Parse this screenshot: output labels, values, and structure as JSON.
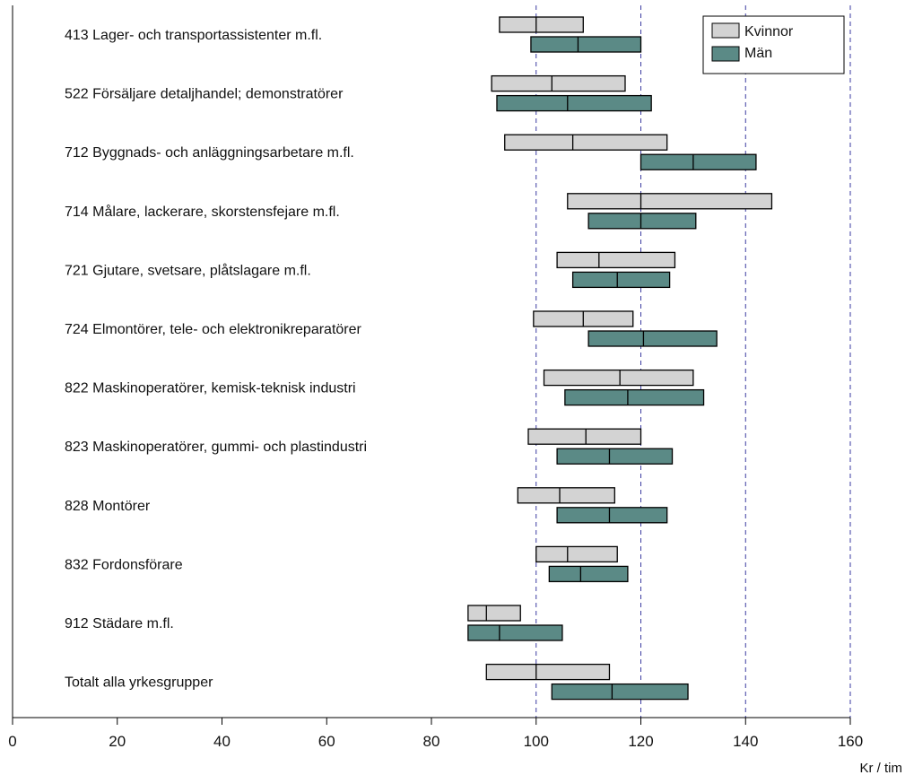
{
  "chart_data": {
    "type": "bar",
    "subtype": "floating-range-with-median",
    "xlabel": "Kr / tim",
    "xlim": [
      0,
      160
    ],
    "xticks": [
      0,
      20,
      40,
      60,
      80,
      100,
      120,
      140,
      160
    ],
    "gridlines": [
      100,
      120,
      140,
      160
    ],
    "grid": true,
    "legend_position": "top-right",
    "series": [
      {
        "name": "Kvinnor",
        "color": "#d3d3d3"
      },
      {
        "name": "Män",
        "color": "#5b8a86"
      }
    ],
    "categories": [
      {
        "label": "413 Lager- och transportassistenter m.fl.",
        "kvinnor": [
          93,
          100,
          109
        ],
        "man": [
          99,
          108,
          120
        ]
      },
      {
        "label": "522 Försäljare detaljhandel; demonstratörer",
        "kvinnor": [
          91.5,
          103,
          117
        ],
        "man": [
          92.5,
          106,
          122
        ]
      },
      {
        "label": "712 Byggnads- och anläggningsarbetare m.fl.",
        "kvinnor": [
          94,
          107,
          125
        ],
        "man": [
          120,
          130,
          142
        ]
      },
      {
        "label": "714 Målare, lackerare, skorstensfejare m.fl.",
        "kvinnor": [
          106,
          120,
          145
        ],
        "man": [
          110,
          120,
          130.5
        ]
      },
      {
        "label": "721 Gjutare, svetsare, plåtslagare m.fl.",
        "kvinnor": [
          104,
          112,
          126.5
        ],
        "man": [
          107,
          115.5,
          125.5
        ]
      },
      {
        "label": "724 Elmontörer, tele- och elektronikreparatörer",
        "kvinnor": [
          99.5,
          109,
          118.5
        ],
        "man": [
          110,
          120.5,
          134.5
        ]
      },
      {
        "label": "822 Maskinoperatörer, kemisk-teknisk industri",
        "kvinnor": [
          101.5,
          116,
          130
        ],
        "man": [
          105.5,
          117.5,
          132
        ]
      },
      {
        "label": "823 Maskinoperatörer, gummi- och plastindustri",
        "kvinnor": [
          98.5,
          109.5,
          120
        ],
        "man": [
          104,
          114,
          126
        ]
      },
      {
        "label": "828 Montörer",
        "kvinnor": [
          96.5,
          104.5,
          115
        ],
        "man": [
          104,
          114,
          125
        ]
      },
      {
        "label": "832 Fordonsförare",
        "kvinnor": [
          100,
          106,
          115.5
        ],
        "man": [
          102.5,
          108.5,
          117.5
        ]
      },
      {
        "label": "912 Städare m.fl.",
        "kvinnor": [
          87,
          90.5,
          97
        ],
        "man": [
          87,
          93,
          105
        ]
      },
      {
        "label": "Totalt alla yrkesgrupper",
        "kvinnor": [
          90.5,
          100,
          114
        ],
        "man": [
          103,
          114.5,
          129
        ]
      }
    ]
  }
}
